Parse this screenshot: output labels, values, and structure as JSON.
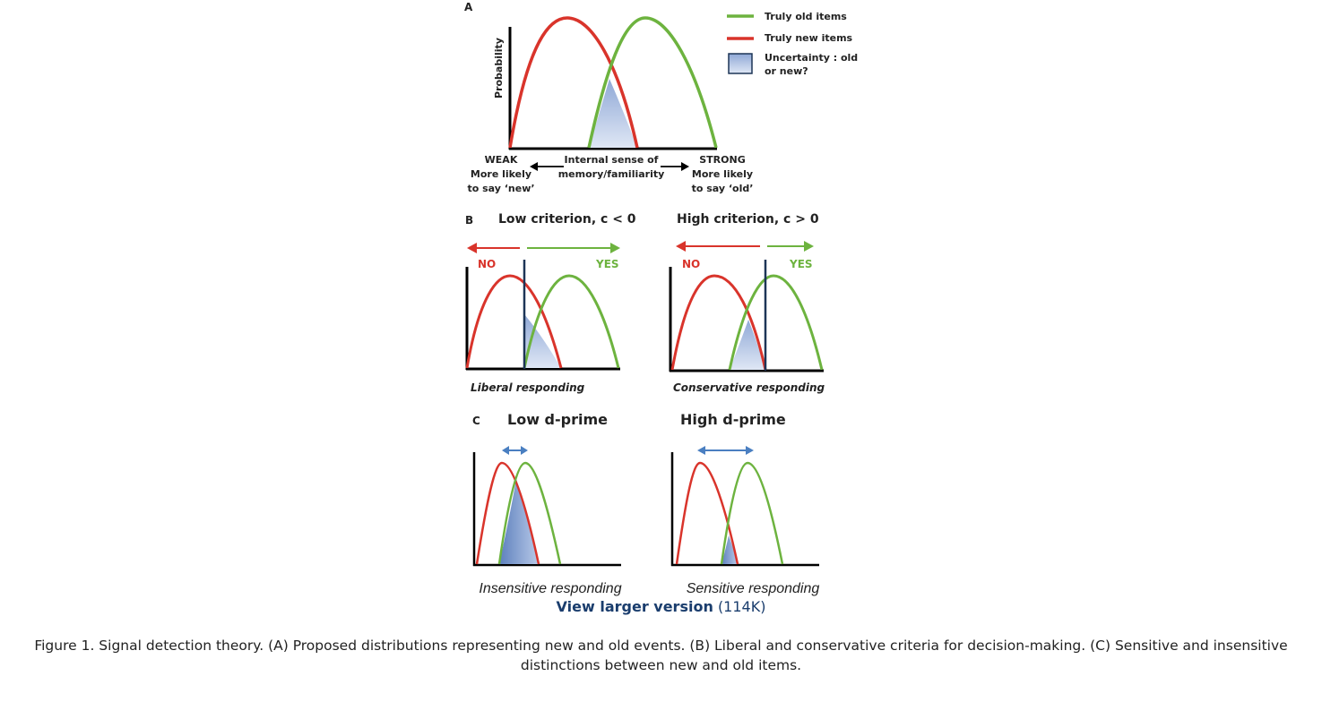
{
  "panel_a": {
    "letter": "A",
    "y_axis_label": "Probability",
    "legend": {
      "old": "Truly old items",
      "new": "Truly new items",
      "uncertainty_line1": "Uncertainty : old",
      "uncertainty_line2": "or new?"
    },
    "left_label": [
      "WEAK",
      "More likely",
      "to say ‘new’"
    ],
    "center_label": [
      "Internal sense of",
      "memory/familiarity"
    ],
    "right_label": [
      "STRONG",
      "More likely",
      "to say ‘old’"
    ]
  },
  "panel_b": {
    "letter": "B",
    "left": {
      "title": "Low criterion, c < 0",
      "no": "NO",
      "yes": "YES",
      "caption": "Liberal responding"
    },
    "right": {
      "title": "High criterion, c > 0",
      "no": "NO",
      "yes": "YES",
      "caption": "Conservative responding"
    }
  },
  "panel_c": {
    "letter": "C",
    "left": {
      "title": "Low d-prime",
      "caption": "Insensitive responding"
    },
    "right": {
      "title": "High d-prime",
      "caption": "Sensitive responding"
    }
  },
  "colors": {
    "old_curve": "#6db33f",
    "new_curve": "#d9342b",
    "fill": "#aabde0",
    "criterion": "#1d3557",
    "arrow_blue": "#4a7fc1"
  },
  "view_link": {
    "label": "View larger version",
    "size": "(114K)"
  },
  "caption": "Figure 1. Signal detection theory. (A) Proposed distributions representing new and old events. (B) Liberal and conservative criteria for decision-making. (C) Sensitive and insensitive distinctions between new and old items."
}
